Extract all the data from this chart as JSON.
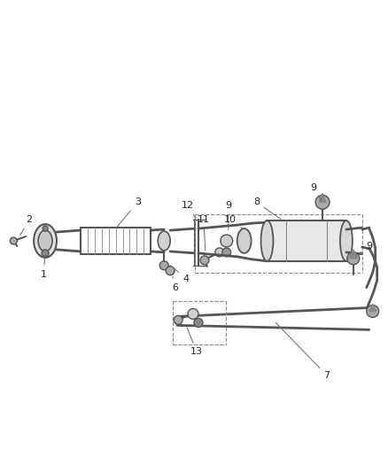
{
  "background_color": "#ffffff",
  "fig_width": 4.38,
  "fig_height": 5.33,
  "dpi": 100,
  "line_color": "#555555",
  "label_color": "#222222",
  "lw": 1.0
}
